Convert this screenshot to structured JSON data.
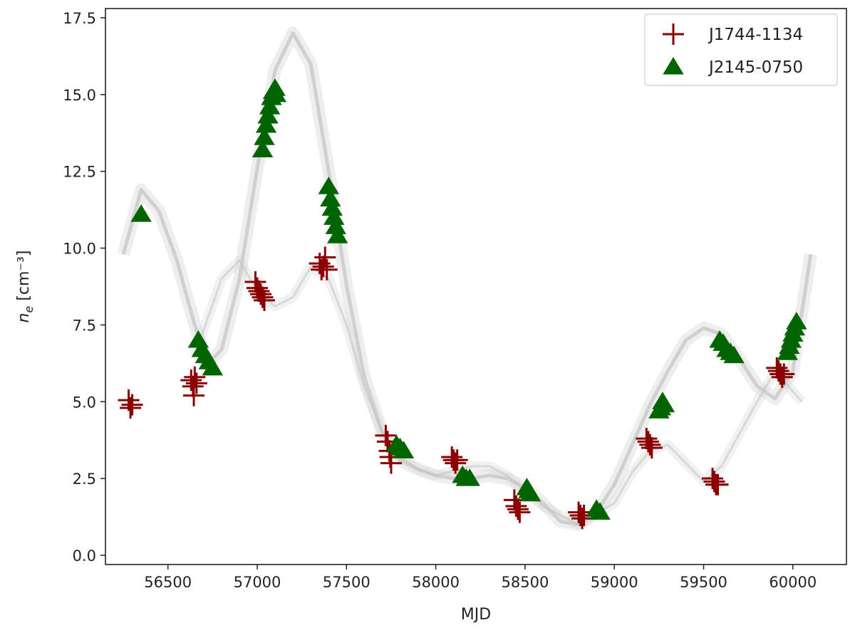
{
  "chart_data": {
    "type": "scatter",
    "xlabel": "MJD",
    "ylabel": "n_e [cm⁻³]",
    "xlim": [
      56150,
      60300
    ],
    "ylim": [
      -0.3,
      17.8
    ],
    "xticks": [
      56500,
      57000,
      57500,
      58000,
      58500,
      59000,
      59500,
      60000
    ],
    "yticks": [
      0.0,
      2.5,
      5.0,
      7.5,
      10.0,
      12.5,
      15.0,
      17.5
    ],
    "xtick_labels": [
      "56500",
      "57000",
      "57500",
      "58000",
      "58500",
      "59000",
      "59500",
      "60000"
    ],
    "ytick_labels": [
      "0.0",
      "2.5",
      "5.0",
      "7.5",
      "10.0",
      "12.5",
      "15.0",
      "17.5"
    ],
    "legend_position": "top-right",
    "background_model": {
      "description_color": "#cfcfcf",
      "mean_curve": [
        [
          56250,
          9.8
        ],
        [
          56350,
          11.9
        ],
        [
          56450,
          11.2
        ],
        [
          56550,
          9.6
        ],
        [
          56650,
          7.5
        ],
        [
          56720,
          6.2
        ],
        [
          56800,
          6.7
        ],
        [
          56900,
          9.0
        ],
        [
          57000,
          12.6
        ],
        [
          57100,
          15.8
        ],
        [
          57200,
          17.0
        ],
        [
          57300,
          16.0
        ],
        [
          57400,
          12.5
        ],
        [
          57500,
          8.8
        ],
        [
          57600,
          5.8
        ],
        [
          57700,
          4.0
        ],
        [
          57800,
          3.1
        ],
        [
          57900,
          2.8
        ],
        [
          58000,
          2.6
        ],
        [
          58100,
          2.5
        ],
        [
          58200,
          2.5
        ],
        [
          58300,
          2.6
        ],
        [
          58400,
          2.5
        ],
        [
          58500,
          2.2
        ],
        [
          58600,
          1.7
        ],
        [
          58700,
          1.1
        ],
        [
          58800,
          1.0
        ],
        [
          58900,
          1.4
        ],
        [
          59000,
          2.3
        ],
        [
          59100,
          3.6
        ],
        [
          59200,
          4.9
        ],
        [
          59300,
          6.0
        ],
        [
          59400,
          7.0
        ],
        [
          59500,
          7.4
        ],
        [
          59600,
          7.2
        ],
        [
          59700,
          6.4
        ],
        [
          59800,
          5.5
        ],
        [
          59900,
          5.1
        ],
        [
          60000,
          6.0
        ],
        [
          60100,
          9.8
        ]
      ],
      "secondary_curve": [
        [
          56650,
          6.5
        ],
        [
          56800,
          9.0
        ],
        [
          56900,
          9.6
        ],
        [
          57000,
          8.6
        ],
        [
          57100,
          8.1
        ],
        [
          57200,
          8.4
        ],
        [
          57300,
          9.4
        ],
        [
          57400,
          9.0
        ],
        [
          57500,
          7.5
        ],
        [
          57600,
          5.5
        ],
        [
          57700,
          4.0
        ],
        [
          57800,
          3.2
        ],
        [
          57900,
          2.8
        ],
        [
          58000,
          2.6
        ],
        [
          58200,
          2.9
        ],
        [
          58300,
          2.9
        ],
        [
          58400,
          2.6
        ],
        [
          58600,
          1.6
        ],
        [
          58800,
          1.0
        ],
        [
          59000,
          1.7
        ],
        [
          59100,
          2.7
        ],
        [
          59200,
          3.4
        ],
        [
          59300,
          3.6
        ],
        [
          59400,
          3.0
        ],
        [
          59500,
          2.4
        ],
        [
          59600,
          2.9
        ],
        [
          59800,
          5.0
        ],
        [
          59900,
          6.0
        ],
        [
          60050,
          5.0
        ]
      ]
    },
    "series": [
      {
        "name": "J1744-1134",
        "marker": "plus",
        "color": "#8b0000",
        "points": [
          [
            56280,
            5.05
          ],
          [
            56300,
            4.9
          ],
          [
            56290,
            4.8
          ],
          [
            56630,
            5.7
          ],
          [
            56640,
            5.5
          ],
          [
            56650,
            5.8
          ],
          [
            56660,
            5.6
          ],
          [
            56645,
            5.2
          ],
          [
            56990,
            8.9
          ],
          [
            57000,
            8.7
          ],
          [
            57010,
            8.6
          ],
          [
            57020,
            8.5
          ],
          [
            57030,
            8.4
          ],
          [
            57040,
            8.3
          ],
          [
            57350,
            9.5
          ],
          [
            57360,
            9.3
          ],
          [
            57370,
            9.4
          ],
          [
            57380,
            9.7
          ],
          [
            57390,
            9.3
          ],
          [
            57720,
            3.9
          ],
          [
            57730,
            3.7
          ],
          [
            57740,
            3.4
          ],
          [
            57745,
            3.2
          ],
          [
            57750,
            3.0
          ],
          [
            58090,
            3.2
          ],
          [
            58100,
            3.1
          ],
          [
            58110,
            3.0
          ],
          [
            58120,
            3.1
          ],
          [
            58440,
            1.8
          ],
          [
            58450,
            1.6
          ],
          [
            58460,
            1.5
          ],
          [
            58470,
            1.4
          ],
          [
            58800,
            1.4
          ],
          [
            58810,
            1.3
          ],
          [
            58820,
            1.2
          ],
          [
            58830,
            1.3
          ],
          [
            59180,
            3.8
          ],
          [
            59190,
            3.7
          ],
          [
            59200,
            3.6
          ],
          [
            59210,
            3.5
          ],
          [
            59550,
            2.5
          ],
          [
            59560,
            2.4
          ],
          [
            59570,
            2.3
          ],
          [
            59580,
            2.3
          ],
          [
            59910,
            6.1
          ],
          [
            59920,
            6.0
          ],
          [
            59930,
            5.9
          ],
          [
            59940,
            5.8
          ],
          [
            59950,
            5.9
          ]
        ]
      },
      {
        "name": "J2145-0750",
        "marker": "triangle",
        "color": "#006400",
        "points": [
          [
            56350,
            11.1
          ],
          [
            56670,
            7.0
          ],
          [
            56690,
            6.7
          ],
          [
            56710,
            6.5
          ],
          [
            56730,
            6.3
          ],
          [
            56750,
            6.1
          ],
          [
            57030,
            13.2
          ],
          [
            57040,
            13.6
          ],
          [
            57050,
            14.0
          ],
          [
            57060,
            14.3
          ],
          [
            57070,
            14.6
          ],
          [
            57080,
            14.9
          ],
          [
            57090,
            15.1
          ],
          [
            57100,
            15.2
          ],
          [
            57105,
            15.0
          ],
          [
            57400,
            12.0
          ],
          [
            57410,
            11.6
          ],
          [
            57420,
            11.3
          ],
          [
            57430,
            11.0
          ],
          [
            57440,
            10.7
          ],
          [
            57450,
            10.4
          ],
          [
            57780,
            3.6
          ],
          [
            57800,
            3.5
          ],
          [
            57820,
            3.4
          ],
          [
            58150,
            2.6
          ],
          [
            58170,
            2.5
          ],
          [
            58190,
            2.5
          ],
          [
            58510,
            2.2
          ],
          [
            58520,
            2.1
          ],
          [
            58530,
            2.0
          ],
          [
            58900,
            1.5
          ],
          [
            58920,
            1.4
          ],
          [
            59250,
            4.7
          ],
          [
            59260,
            4.8
          ],
          [
            59270,
            5.0
          ],
          [
            59280,
            4.9
          ],
          [
            59590,
            7.0
          ],
          [
            59610,
            6.9
          ],
          [
            59630,
            6.7
          ],
          [
            59650,
            6.6
          ],
          [
            59670,
            6.5
          ],
          [
            59970,
            6.6
          ],
          [
            59980,
            6.8
          ],
          [
            59990,
            7.0
          ],
          [
            60000,
            7.2
          ],
          [
            60010,
            7.4
          ],
          [
            60020,
            7.6
          ]
        ]
      }
    ]
  }
}
